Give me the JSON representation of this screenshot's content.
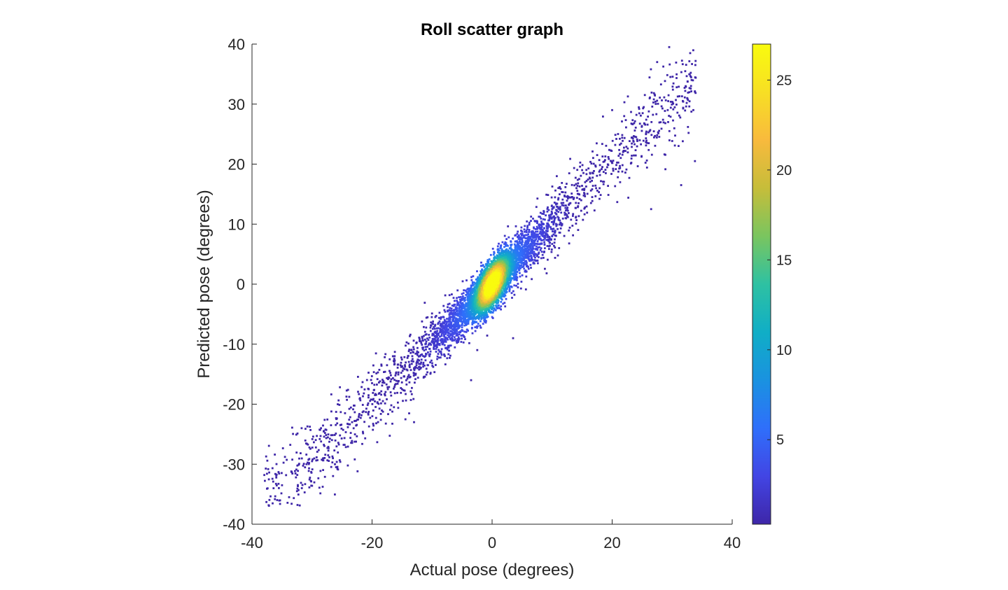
{
  "chart_data": {
    "type": "scatter",
    "title": "Roll scatter graph",
    "xlabel": "Actual pose (degrees)",
    "ylabel": "Predicted pose (degrees)",
    "xlim": [
      -40,
      40
    ],
    "ylim": [
      -40,
      40
    ],
    "xticks": [
      -40,
      -20,
      0,
      20,
      40
    ],
    "yticks": [
      -40,
      -30,
      -20,
      -10,
      0,
      10,
      20,
      30,
      40
    ],
    "grid": false,
    "marker_color": "#3e26a8",
    "colorbar": {
      "colormap": "parula",
      "range": [
        0.3,
        27
      ],
      "ticks": [
        5,
        10,
        15,
        20,
        25
      ],
      "placement": "right",
      "colors": [
        "#3e26a8",
        "#4245e4",
        "#2f6ffb",
        "#1a92e0",
        "#10aec6",
        "#2ec1a2",
        "#7ac55f",
        "#c6bd3a",
        "#f8ba3d",
        "#f7df24",
        "#f9fb0e"
      ]
    },
    "density_model": {
      "description_free": true,
      "peak_color_value": 27
    },
    "sample_points": [
      [
        -37.6,
        -36.3
      ],
      [
        -35.0,
        -33.5
      ],
      [
        -32.5,
        -34.5
      ],
      [
        -30.0,
        -29.5
      ],
      [
        -28.5,
        -24.0
      ],
      [
        -26.0,
        -30.5
      ],
      [
        -24.5,
        -21.5
      ],
      [
        -22.0,
        -19.0
      ],
      [
        -20.0,
        -16.5
      ],
      [
        -17.5,
        -13.5
      ],
      [
        -15.0,
        -17.5
      ],
      [
        -13.0,
        -23.0
      ],
      [
        -12.5,
        -11.5
      ],
      [
        -10.0,
        -9.5
      ],
      [
        -8.0,
        -8.5
      ],
      [
        -5.5,
        -4.5
      ],
      [
        -3.5,
        -16.0
      ],
      [
        -2.0,
        -2.0
      ],
      [
        0.0,
        0.0
      ],
      [
        1.5,
        1.0
      ],
      [
        3.5,
        -9.0
      ],
      [
        4.5,
        4.0
      ],
      [
        6.0,
        5.5
      ],
      [
        8.5,
        8.0
      ],
      [
        10.0,
        12.5
      ],
      [
        12.5,
        12.5
      ],
      [
        15.0,
        19.0
      ],
      [
        17.5,
        21.5
      ],
      [
        20.0,
        29.0
      ],
      [
        22.0,
        28.0
      ],
      [
        24.0,
        24.5
      ],
      [
        26.5,
        12.5
      ],
      [
        27.5,
        37.0
      ],
      [
        29.5,
        39.5
      ],
      [
        31.5,
        16.5
      ],
      [
        33.0,
        38.5
      ],
      [
        33.8,
        20.5
      ],
      [
        32.5,
        31.0
      ]
    ]
  }
}
